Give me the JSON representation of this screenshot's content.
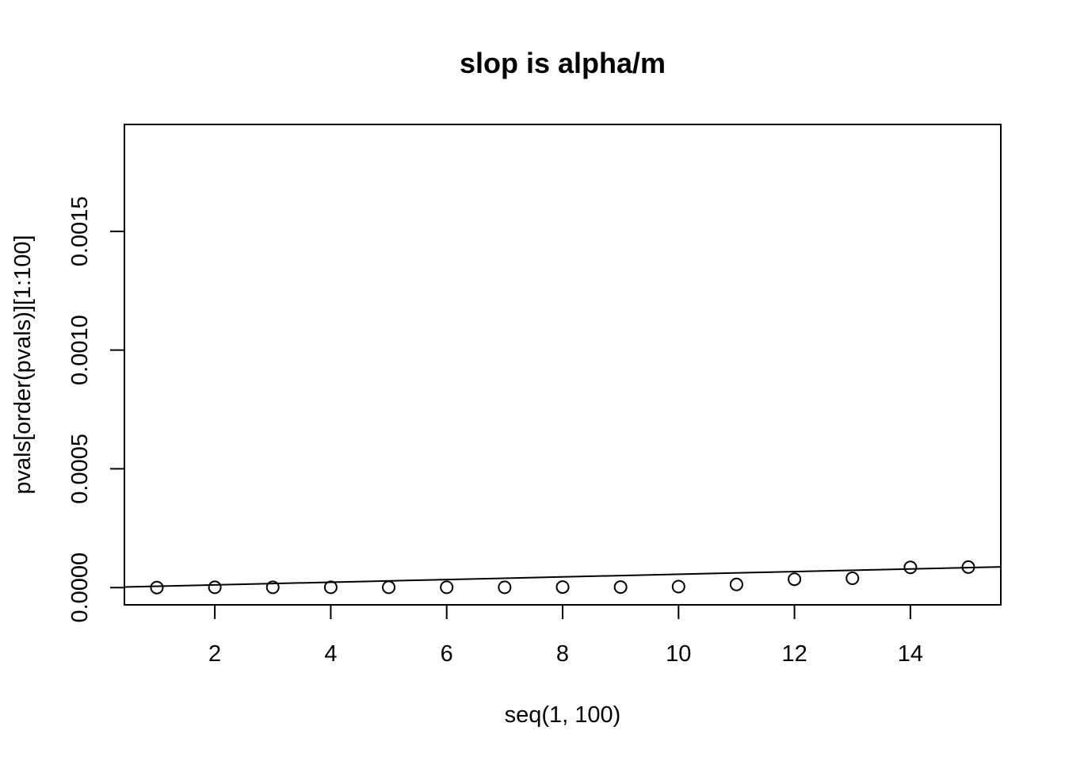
{
  "chart_data": {
    "type": "scatter",
    "title": "slop is alpha/m",
    "xlabel": "seq(1, 100)",
    "ylabel": "pvals[order(pvals)][1:100]",
    "xlim": [
      0.44,
      15.56
    ],
    "ylim": [
      -7.28e-05,
      0.00195
    ],
    "x_ticks": [
      2,
      4,
      6,
      8,
      10,
      12,
      14
    ],
    "x_tick_labels": [
      "2",
      "4",
      "6",
      "8",
      "10",
      "12",
      "14"
    ],
    "y_ticks": [
      0,
      0.0005,
      0.001,
      0.0015
    ],
    "y_tick_labels": [
      "0.0000",
      "0.0005",
      "0.0010",
      "0.0015"
    ],
    "grid": false,
    "points": {
      "x": [
        1,
        2,
        3,
        4,
        5,
        6,
        7,
        8,
        9,
        10,
        11,
        12,
        13,
        14,
        15
      ],
      "y": [
        0.0,
        1e-06,
        1e-06,
        1e-06,
        1e-06,
        1e-06,
        1e-06,
        2e-06,
        2e-06,
        4e-06,
        1.3e-05,
        3.5e-05,
        3.9e-05,
        8.5e-05,
        8.6e-05
      ],
      "marker": "open-circle"
    },
    "reference_line": {
      "intercept": 0,
      "slope": 5.6e-06
    }
  }
}
